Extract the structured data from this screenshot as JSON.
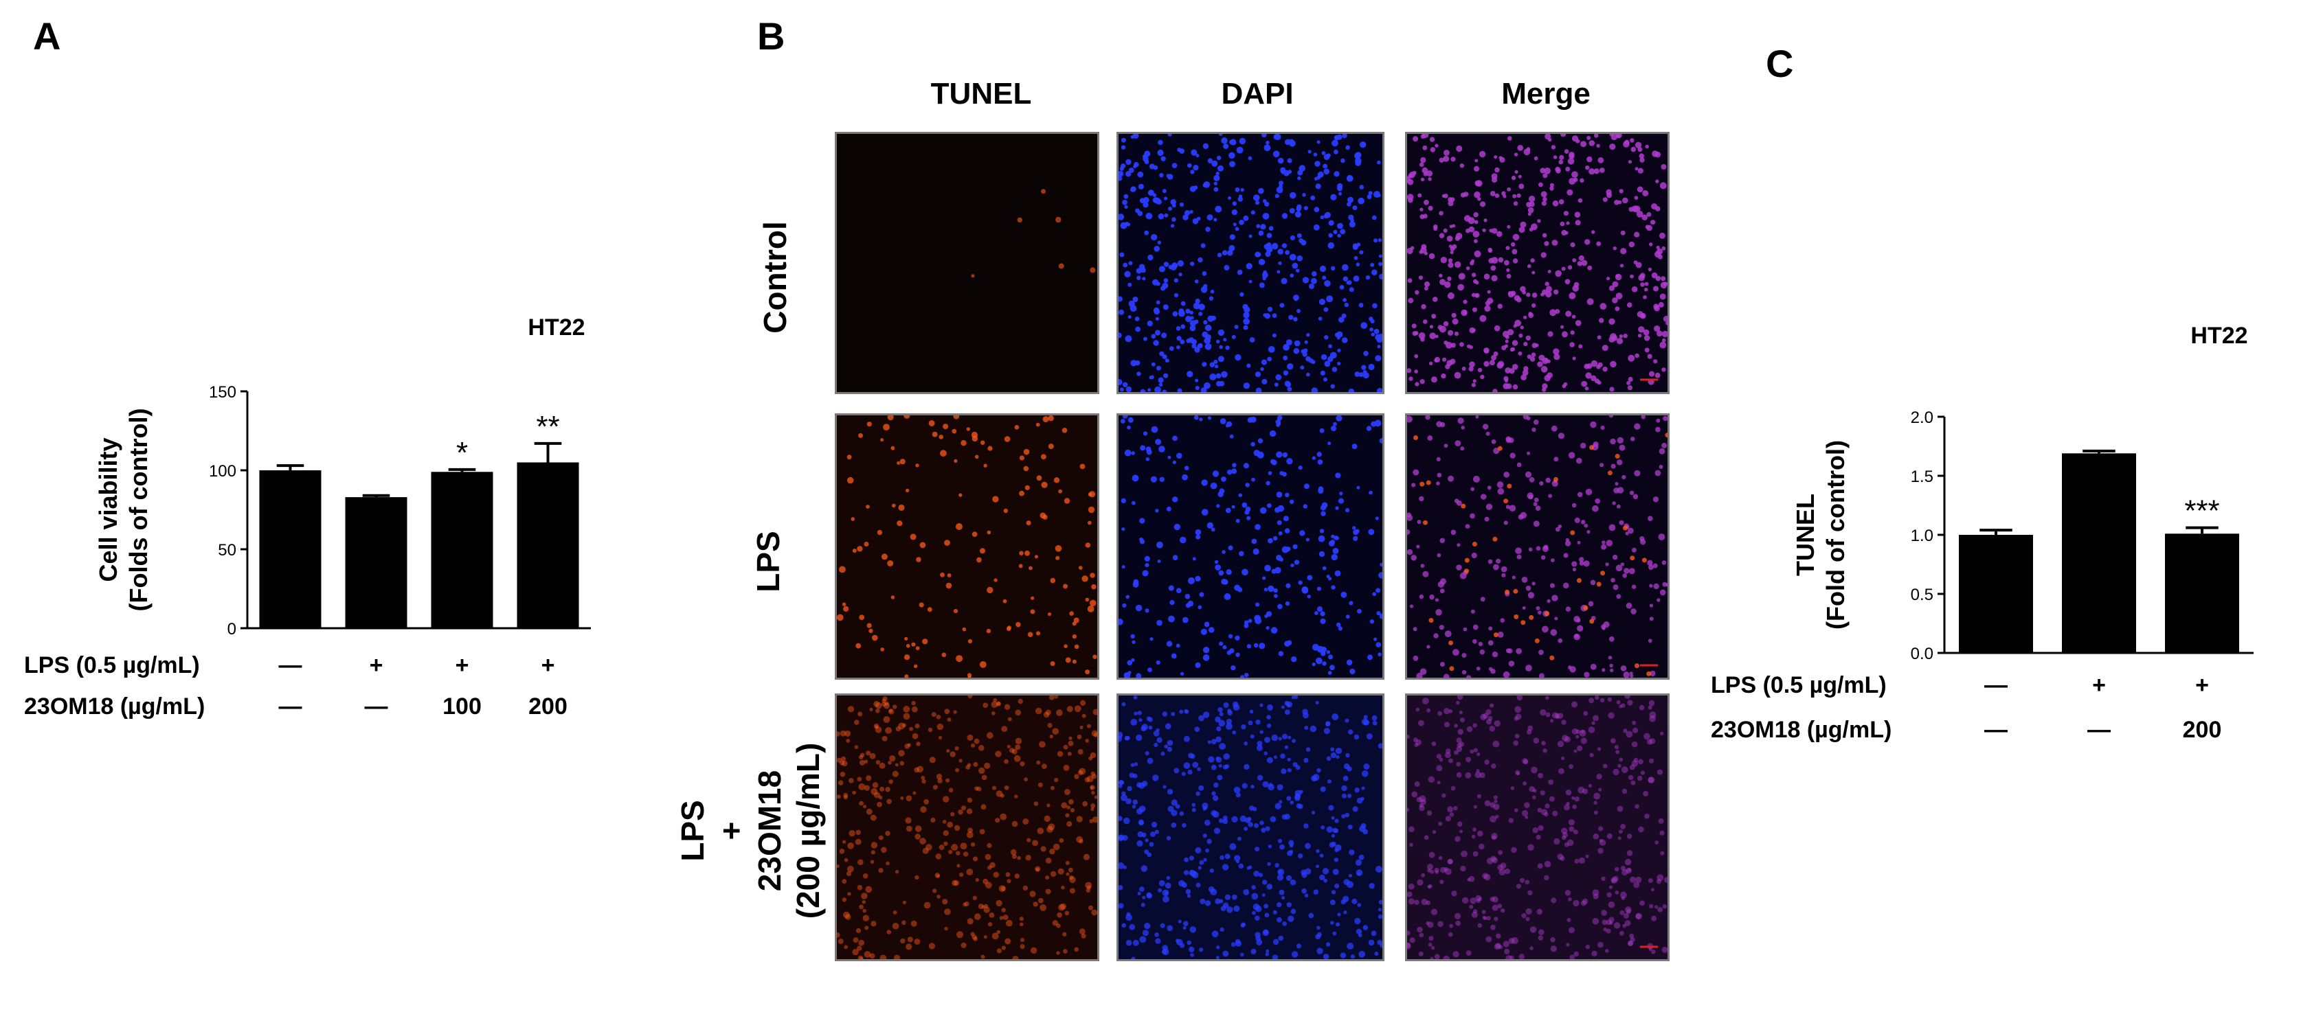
{
  "panels": {
    "a": "A",
    "b": "B",
    "c": "C"
  },
  "colors": {
    "bar": "#000000",
    "tunel_signal": "#ff5a1a",
    "dapi_signal": "#2a3cff",
    "merge_signal": "#b03cd0",
    "background_dark": "#0a0404"
  },
  "chart_data": [
    {
      "type": "bar",
      "panel": "A",
      "title": "HT22",
      "ylabel_line1": "Cell viability",
      "ylabel_line2": "(Folds of control)",
      "ylim": [
        0,
        150
      ],
      "yticks": [
        "0",
        "50",
        "100",
        "150"
      ],
      "ytick_values": [
        0,
        50,
        100,
        150
      ],
      "values": [
        100,
        83,
        99,
        105
      ],
      "errors": [
        3,
        1,
        1.5,
        12
      ],
      "significance": [
        "",
        "",
        "*",
        "**"
      ],
      "treatments": [
        {
          "label": "LPS (0.5 µg/mL)",
          "levels": [
            "—",
            "+",
            "+",
            "+"
          ]
        },
        {
          "label": "23OM18 (µg/mL)",
          "levels": [
            "—",
            "—",
            "100",
            "200"
          ]
        }
      ]
    },
    {
      "type": "bar",
      "panel": "C",
      "title": "HT22",
      "ylabel_line1": "TUNEL",
      "ylabel_line2": "(Fold of control)",
      "ylim": [
        0,
        2.0
      ],
      "yticks": [
        "0.0",
        "0.5",
        "1.0",
        "1.5",
        "2.0"
      ],
      "ytick_values": [
        0,
        0.5,
        1.0,
        1.5,
        2.0
      ],
      "values": [
        1.0,
        1.69,
        1.01
      ],
      "errors": [
        0.04,
        0.02,
        0.05
      ],
      "significance": [
        "",
        "",
        "***"
      ],
      "treatments": [
        {
          "label": "LPS (0.5 µg/mL)",
          "levels": [
            "—",
            "+",
            "+"
          ]
        },
        {
          "label": "23OM18 (µg/mL)",
          "levels": [
            "—",
            "—",
            "200"
          ]
        }
      ]
    }
  ],
  "micrographs": {
    "columns": [
      "TUNEL",
      "DAPI",
      "Merge"
    ],
    "rows": [
      {
        "label": "Control"
      },
      {
        "label": "LPS"
      },
      {
        "label": "LPS\n+\n23OM18\n(200 µg/mL)"
      }
    ]
  }
}
